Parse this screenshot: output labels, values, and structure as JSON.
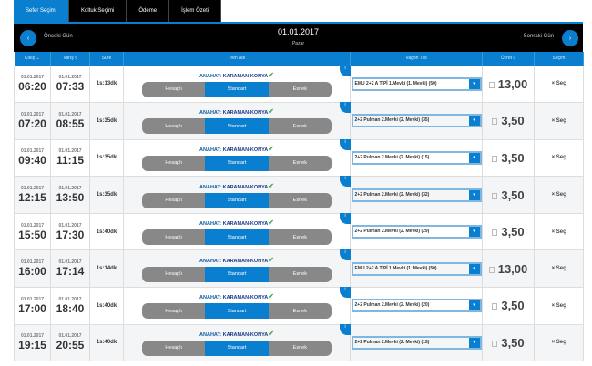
{
  "tabs": [
    "Sefer Seçimi",
    "Koltuk Seçimi",
    "Ödeme",
    "İşlem Özeti"
  ],
  "header": {
    "prev": "Önceki Gün",
    "next": "Sonraki Gün",
    "date": "01.01.2017",
    "day": "Pazar"
  },
  "columns": [
    "Çıkış ⌄",
    "Varış ◊",
    "Süre",
    "Tren Adı",
    "Vagon Tipi",
    "Ücret ◊",
    "Seçim"
  ],
  "accent": "#0a7fd0",
  "segment": [
    "Hesaplı",
    "Standart",
    "Esnek"
  ],
  "select_label": "Seç",
  "rows": [
    {
      "dep_date": "01.01.2017",
      "dep": "06:20",
      "arr_date": "01.01.2017",
      "arr": "07:33",
      "dur": "1s:13dk",
      "train_prefix": "ANAHAT:",
      "train": "KARAMAN-KONYA",
      "wagon": "EMU 2+2 A TİPİ 1.Mevki (1. Mevki) (50)",
      "price": "13,00"
    },
    {
      "dep_date": "01.01.2017",
      "dep": "07:20",
      "arr_date": "01.01.2017",
      "arr": "08:55",
      "dur": "1s:35dk",
      "train_prefix": "ANAHAT:",
      "train": "KARAMAN-KONYA",
      "wagon": "2+2 Pulman 2.Mevki (2. Mevki) (35)",
      "price": "3,50"
    },
    {
      "dep_date": "01.01.2017",
      "dep": "09:40",
      "arr_date": "01.01.2017",
      "arr": "11:15",
      "dur": "1s:35dk",
      "train_prefix": "ANAHAT:",
      "train": "KARAMAN-KONYA",
      "wagon": "2+2 Pulman 2.Mevki (2. Mevki) (15)",
      "price": "3,50"
    },
    {
      "dep_date": "01.01.2017",
      "dep": "12:15",
      "arr_date": "01.01.2017",
      "arr": "13:50",
      "dur": "1s:35dk",
      "train_prefix": "ANAHAT:",
      "train": "KARAMAN-KONYA",
      "wagon": "2+2 Pulman 2.Mevki (2. Mevki) (32)",
      "price": "3,50"
    },
    {
      "dep_date": "01.01.2017",
      "dep": "15:50",
      "arr_date": "01.01.2017",
      "arr": "17:30",
      "dur": "1s:40dk",
      "train_prefix": "ANAHAT:",
      "train": "KARAMAN-KONYA",
      "wagon": "2+2 Pulman 2.Mevki (2. Mevki) (29)",
      "price": "3,50"
    },
    {
      "dep_date": "01.01.2017",
      "dep": "16:00",
      "arr_date": "01.01.2017",
      "arr": "17:14",
      "dur": "1s:14dk",
      "train_prefix": "ANAHAT:",
      "train": "KARAMAN-KONYA",
      "wagon": "EMU 2+2 A TİPİ 1.Mevki (1. Mevki) (50)",
      "price": "13,00"
    },
    {
      "dep_date": "01.01.2017",
      "dep": "17:00",
      "arr_date": "01.01.2017",
      "arr": "18:40",
      "dur": "1s:40dk",
      "train_prefix": "ANAHAT:",
      "train": "KARAMAN-KONYA",
      "wagon": "2+2 Pulman 2.Mevki (2. Mevki) (20)",
      "price": "3,50"
    },
    {
      "dep_date": "01.01.2017",
      "dep": "19:15",
      "arr_date": "01.01.2017",
      "arr": "20:55",
      "dur": "1s:40dk",
      "train_prefix": "ANAHAT:",
      "train": "KARAMAN-KONYA",
      "wagon": "2+2 Pulman 2.Mevki (2. Mevki) (15)",
      "price": "3,50"
    }
  ]
}
